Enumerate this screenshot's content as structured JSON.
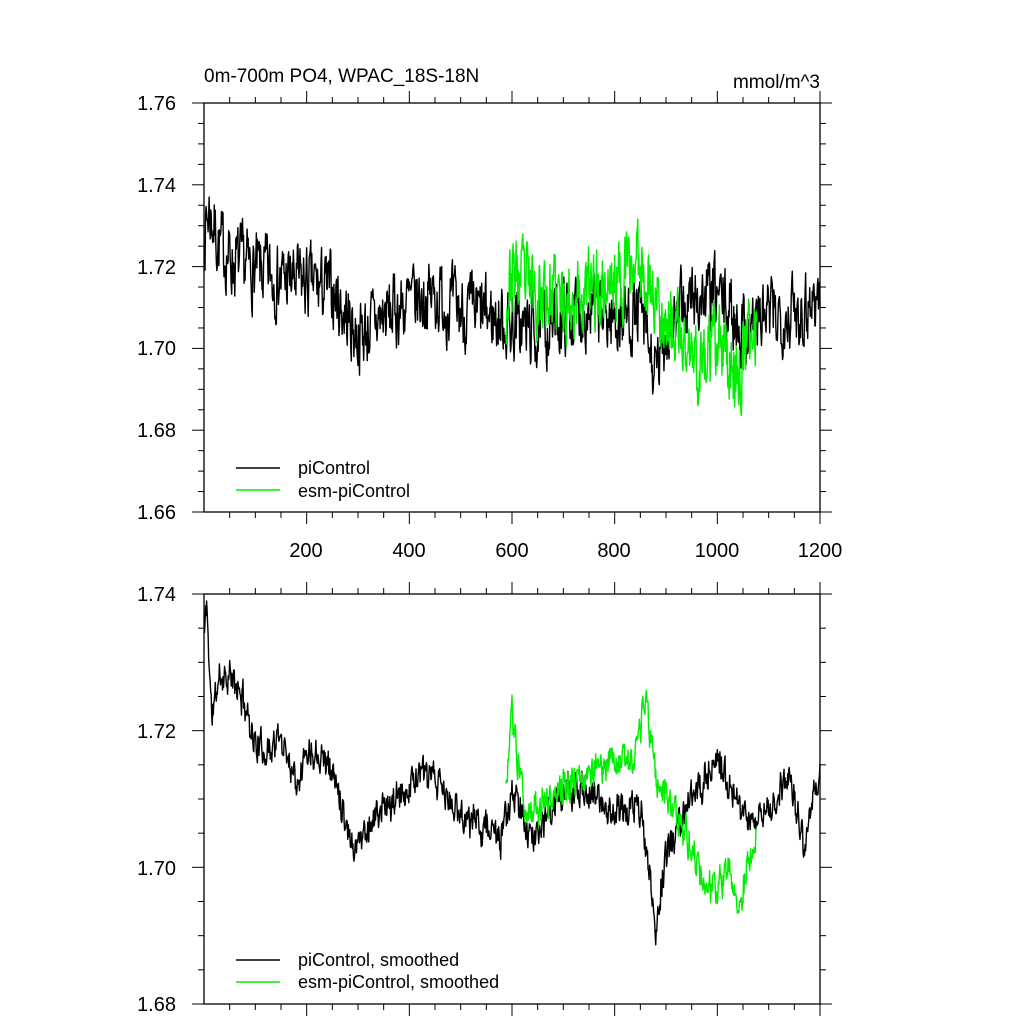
{
  "colors": {
    "picontrol": "#000000",
    "esm_picontrol": "#00ee00",
    "axis": "#000000",
    "background": "#ffffff"
  },
  "chart_data": [
    {
      "type": "line",
      "title": "0m-700m PO4, WPAC_18S-18N",
      "units": "mmol/m^3",
      "xlabel": "",
      "ylabel": "",
      "xlim": [
        0,
        1200
      ],
      "ylim": [
        1.66,
        1.76
      ],
      "x_ticks": [
        200,
        400,
        600,
        800,
        1000,
        1200
      ],
      "x_tick_labels": [
        "200",
        "400",
        "600",
        "800",
        "1000",
        "1200"
      ],
      "y_ticks": [
        1.66,
        1.68,
        1.7,
        1.72,
        1.74,
        1.76
      ],
      "y_tick_labels": [
        "1.66",
        "1.68",
        "1.70",
        "1.72",
        "1.74",
        "1.76"
      ],
      "legend_position": "bottom-left",
      "series": [
        {
          "name": "piControl",
          "color": "#000000",
          "x_start": 1,
          "x_end": 1200,
          "anchors_x": [
            0,
            10,
            30,
            60,
            100,
            150,
            200,
            250,
            300,
            350,
            400,
            450,
            500,
            550,
            600,
            650,
            700,
            750,
            800,
            850,
            880,
            900,
            950,
            1000,
            1050,
            1100,
            1150,
            1200
          ],
          "anchors_y": [
            1.728,
            1.734,
            1.725,
            1.721,
            1.719,
            1.717,
            1.716,
            1.714,
            1.703,
            1.708,
            1.711,
            1.713,
            1.709,
            1.708,
            1.706,
            1.704,
            1.708,
            1.71,
            1.707,
            1.709,
            1.692,
            1.704,
            1.712,
            1.713,
            1.705,
            1.708,
            1.709,
            1.713
          ],
          "noise_amplitude": 0.0085,
          "seed": 7
        },
        {
          "name": "esm-piControl",
          "color": "#00ee00",
          "x_start": 588,
          "x_end": 1077,
          "anchors_x": [
            588,
            600,
            650,
            700,
            750,
            800,
            850,
            880,
            920,
            960,
            1000,
            1040,
            1060,
            1077
          ],
          "anchors_y": [
            1.711,
            1.718,
            1.714,
            1.712,
            1.714,
            1.716,
            1.722,
            1.712,
            1.703,
            1.696,
            1.7,
            1.694,
            1.701,
            1.705
          ],
          "noise_amplitude": 0.0095,
          "seed": 23
        }
      ]
    },
    {
      "type": "line",
      "title": "",
      "xlabel": "",
      "ylabel": "",
      "xlim": [
        0,
        1200
      ],
      "ylim": [
        1.68,
        1.74
      ],
      "x_ticks": [
        200,
        400,
        600,
        800,
        1000,
        1200
      ],
      "y_ticks": [
        1.68,
        1.7,
        1.72,
        1.74
      ],
      "y_tick_labels": [
        "1.68",
        "1.70",
        "1.72",
        "1.74"
      ],
      "legend_position": "bottom-left",
      "series": [
        {
          "name": "piControl, smoothed",
          "color": "#000000",
          "x_start": 1,
          "x_end": 1200,
          "anchors_x": [
            0,
            5,
            15,
            30,
            50,
            80,
            100,
            120,
            150,
            180,
            200,
            230,
            260,
            290,
            310,
            340,
            380,
            420,
            460,
            480,
            520,
            550,
            580,
            600,
            640,
            700,
            750,
            800,
            850,
            880,
            900,
            950,
            1000,
            1050,
            1100,
            1140,
            1170,
            1200
          ],
          "anchors_y": [
            1.733,
            1.739,
            1.722,
            1.728,
            1.728,
            1.724,
            1.718,
            1.717,
            1.719,
            1.713,
            1.717,
            1.717,
            1.712,
            1.703,
            1.705,
            1.708,
            1.71,
            1.714,
            1.712,
            1.709,
            1.707,
            1.706,
            1.704,
            1.711,
            1.704,
            1.711,
            1.711,
            1.708,
            1.709,
            1.691,
            1.702,
            1.71,
            1.716,
            1.707,
            1.708,
            1.714,
            1.702,
            1.715
          ],
          "noise_amplitude": 0.0042,
          "seed": 11
        },
        {
          "name": "esm-piControl, smoothed",
          "color": "#00ee00",
          "x_start": 588,
          "x_end": 1077,
          "anchors_x": [
            588,
            600,
            625,
            650,
            700,
            750,
            800,
            840,
            860,
            880,
            910,
            940,
            970,
            1000,
            1020,
            1045,
            1060,
            1077
          ],
          "anchors_y": [
            1.711,
            1.722,
            1.708,
            1.709,
            1.712,
            1.714,
            1.716,
            1.716,
            1.725,
            1.713,
            1.709,
            1.704,
            1.698,
            1.696,
            1.7,
            1.694,
            1.701,
            1.705
          ],
          "noise_amplitude": 0.0045,
          "seed": 31
        }
      ]
    }
  ]
}
